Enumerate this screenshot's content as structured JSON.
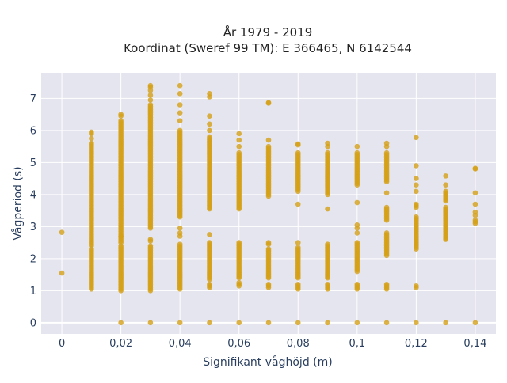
{
  "chart_data": {
    "type": "scatter",
    "title_line1": "År 1979 - 2019",
    "title_line2": "Koordinat (Sweref 99 TM): E 366465, N 6142544",
    "xlabel": "Signifikant våghöjd (m)",
    "ylabel": "Vågperiod (s)",
    "xlim": [
      -0.007,
      0.147
    ],
    "ylim": [
      -0.35,
      7.8
    ],
    "x_ticks": [
      0,
      0.02,
      0.04,
      0.06,
      0.08,
      0.1,
      0.12,
      0.14
    ],
    "x_tick_labels": [
      "0",
      "0,02",
      "0,04",
      "0,06",
      "0,08",
      "0,1",
      "0,12",
      "0,14"
    ],
    "y_ticks": [
      0,
      1,
      2,
      3,
      4,
      5,
      6,
      7
    ],
    "y_tick_labels": [
      "0",
      "1",
      "2",
      "3",
      "4",
      "5",
      "6",
      "7"
    ],
    "grid": true,
    "marker_color": "#d4a017",
    "plot_bg": "#e5e5ef",
    "columns": [
      {
        "x": 0.0,
        "zeros": false,
        "ranges": [],
        "points": [
          1.55,
          2.82
        ]
      },
      {
        "x": 0.01,
        "zeros": false,
        "ranges": [
          [
            1.05,
            2.3
          ],
          [
            2.4,
            5.6
          ]
        ],
        "points": [
          5.75,
          5.9,
          5.95
        ]
      },
      {
        "x": 0.02,
        "zeros": true,
        "ranges": [
          [
            1.0,
            2.4
          ],
          [
            2.55,
            6.3
          ]
        ],
        "points": [
          2.5,
          2.7,
          6.45,
          6.5
        ]
      },
      {
        "x": 0.03,
        "zeros": true,
        "ranges": [
          [
            1.0,
            2.4
          ],
          [
            2.95,
            6.8
          ]
        ],
        "points": [
          2.55,
          2.6,
          6.95,
          7.1,
          7.25,
          7.35,
          7.4
        ]
      },
      {
        "x": 0.04,
        "zeros": true,
        "ranges": [
          [
            1.05,
            2.45
          ],
          [
            3.3,
            6.0
          ]
        ],
        "points": [
          2.7,
          2.8,
          2.95,
          6.3,
          6.55,
          6.8,
          7.15,
          7.4
        ]
      },
      {
        "x": 0.05,
        "zeros": true,
        "ranges": [
          [
            1.1,
            1.2
          ],
          [
            1.35,
            2.5
          ],
          [
            3.55,
            5.8
          ]
        ],
        "points": [
          2.75,
          6.0,
          6.2,
          6.45,
          7.05,
          7.15
        ]
      },
      {
        "x": 0.06,
        "zeros": true,
        "ranges": [
          [
            1.15,
            1.25
          ],
          [
            1.4,
            2.5
          ],
          [
            3.6,
            5.3
          ]
        ],
        "points": [
          3.55,
          5.5,
          5.7,
          5.9
        ]
      },
      {
        "x": 0.07,
        "zeros": true,
        "ranges": [
          [
            1.1,
            1.2
          ],
          [
            1.4,
            2.3
          ],
          [
            3.95,
            5.5
          ]
        ],
        "points": [
          2.45,
          2.5,
          5.7,
          6.85,
          6.87
        ]
      },
      {
        "x": 0.08,
        "zeros": true,
        "ranges": [
          [
            1.05,
            1.2
          ],
          [
            1.4,
            2.35
          ],
          [
            4.1,
            5.3
          ]
        ],
        "points": [
          2.5,
          3.7,
          5.55,
          5.58
        ]
      },
      {
        "x": 0.09,
        "zeros": true,
        "ranges": [
          [
            1.05,
            1.2
          ],
          [
            1.4,
            2.45
          ],
          [
            4.0,
            5.3
          ]
        ],
        "points": [
          3.55,
          5.5,
          5.6
        ]
      },
      {
        "x": 0.1,
        "zeros": true,
        "ranges": [
          [
            1.05,
            1.2
          ],
          [
            1.6,
            2.5
          ],
          [
            4.3,
            5.3
          ]
        ],
        "points": [
          2.8,
          2.95,
          3.05,
          3.75,
          5.5
        ]
      },
      {
        "x": 0.11,
        "zeros": true,
        "ranges": [
          [
            1.05,
            1.2
          ],
          [
            2.1,
            2.8
          ],
          [
            3.2,
            3.6
          ],
          [
            4.4,
            5.3
          ]
        ],
        "points": [
          4.05,
          5.5,
          5.6
        ]
      },
      {
        "x": 0.12,
        "zeros": true,
        "ranges": [
          [
            1.1,
            1.18
          ],
          [
            2.3,
            3.3
          ],
          [
            3.6,
            3.7
          ]
        ],
        "points": [
          4.1,
          4.3,
          4.5,
          4.9,
          5.78
        ]
      },
      {
        "x": 0.13,
        "zeros": true,
        "ranges": [
          [
            2.6,
            3.6
          ],
          [
            3.8,
            4.1
          ]
        ],
        "points": [
          4.3,
          4.58
        ]
      },
      {
        "x": 0.14,
        "zeros": true,
        "ranges": [
          [
            3.1,
            3.2
          ]
        ],
        "points": [
          3.35,
          3.45,
          3.7,
          4.05,
          4.8,
          4.82
        ]
      }
    ]
  }
}
